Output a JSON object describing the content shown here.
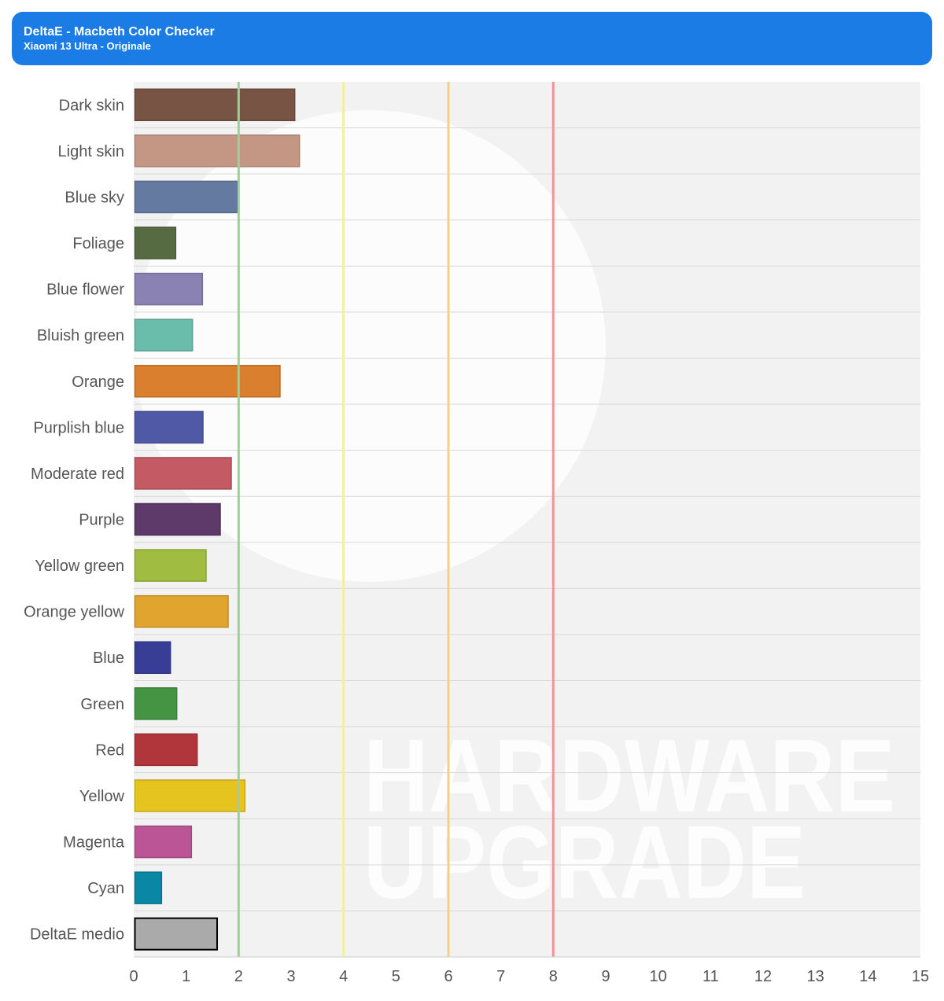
{
  "header": {
    "title": "DeltaE - Macbeth Color Checker",
    "subtitle": "Xiaomi 13 Ultra - Originale"
  },
  "watermark": {
    "line1": "HARDWARE",
    "line2": "UPGRADE"
  },
  "chart_data": {
    "type": "bar",
    "orientation": "horizontal",
    "title": "DeltaE - Macbeth Color Checker",
    "subtitle": "Xiaomi 13 Ultra - Originale",
    "categories": [
      "Dark skin",
      "Light skin",
      "Blue sky",
      "Foliage",
      "Blue flower",
      "Bluish green",
      "Orange",
      "Purplish blue",
      "Moderate red",
      "Purple",
      "Yellow green",
      "Orange yellow",
      "Blue",
      "Green",
      "Red",
      "Yellow",
      "Magenta",
      "Cyan",
      "DeltaE medio"
    ],
    "values": [
      3.07,
      3.16,
      1.98,
      0.8,
      1.31,
      1.12,
      2.79,
      1.32,
      1.86,
      1.65,
      1.38,
      1.8,
      0.7,
      0.82,
      1.21,
      2.12,
      1.1,
      0.53,
      1.59
    ],
    "colors": [
      "#775443",
      "#c49785",
      "#657aa0",
      "#566b41",
      "#8a82b3",
      "#6abdaa",
      "#d97f2e",
      "#4f59a5",
      "#c45a64",
      "#5d3a69",
      "#a1bd41",
      "#e1a42e",
      "#383e96",
      "#459444",
      "#b0363b",
      "#e6c41f",
      "#bb5595",
      "#0a87a5",
      "#aaaaaa"
    ],
    "highlight_category": "DeltaE medio",
    "xlim": [
      0,
      15
    ],
    "xticks": [
      "0",
      "1",
      "2",
      "3",
      "4",
      "5",
      "6",
      "7",
      "8",
      "9",
      "10",
      "11",
      "12",
      "13",
      "14",
      "15"
    ],
    "reference_lines": [
      {
        "value": 2,
        "color": "#a3cc9c"
      },
      {
        "value": 4,
        "color": "#f4ef9a"
      },
      {
        "value": 6,
        "color": "#f7cf80"
      },
      {
        "value": 8,
        "color": "#ee9596"
      }
    ],
    "grid": "horizontal separators",
    "legend": "none"
  }
}
